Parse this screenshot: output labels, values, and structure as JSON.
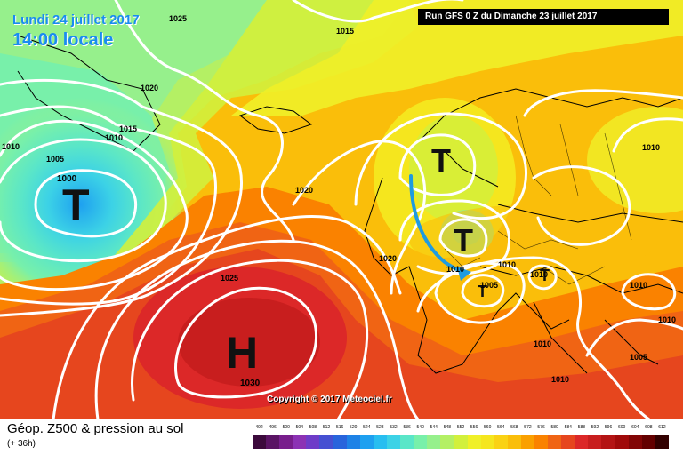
{
  "header": {
    "date_line": "Lundi 24 juillet 2017",
    "time_line": "14:00 locale",
    "run_info": "Run GFS 0 Z du Dimanche 23 juillet 2017"
  },
  "map": {
    "copyright": "Copyright © 2017 Meteociel.fr",
    "pressure_centers": [
      {
        "type": "low",
        "symbol": "T",
        "label": "1000"
      },
      {
        "type": "high",
        "symbol": "H",
        "label": "1030"
      },
      {
        "type": "low",
        "symbol": "T"
      },
      {
        "type": "low",
        "symbol": "T"
      },
      {
        "type": "low",
        "symbol": "T"
      },
      {
        "type": "low",
        "symbol": "T"
      }
    ],
    "isobar_labels": [
      "1025",
      "1015",
      "1020",
      "1015",
      "1010",
      "1010",
      "1005",
      "1000",
      "1020",
      "1025",
      "1030",
      "1020",
      "1010",
      "1010",
      "1005",
      "1010",
      "1010",
      "1010",
      "1010",
      "1005",
      "1010",
      "1010"
    ],
    "arrow_color": "#1e9be0"
  },
  "footer": {
    "title": "Géop. Z500 & pression au sol",
    "subtitle": "(+ 36h)"
  },
  "legend": {
    "values": [
      "492",
      "496",
      "500",
      "504",
      "508",
      "512",
      "516",
      "520",
      "524",
      "528",
      "532",
      "536",
      "540",
      "544",
      "548",
      "552",
      "556",
      "560",
      "564",
      "568",
      "572",
      "576",
      "580",
      "584",
      "588",
      "592",
      "596",
      "600",
      "604",
      "608",
      "612"
    ],
    "colors": [
      "#3c0a3c",
      "#5a1464",
      "#781e8c",
      "#8c32b4",
      "#6e3cc8",
      "#4650d2",
      "#2864dc",
      "#1e82e6",
      "#1ea0f0",
      "#28bef0",
      "#3cd2e6",
      "#5ae6c8",
      "#78f0aa",
      "#96f08c",
      "#b4f064",
      "#d2f03c",
      "#f0f028",
      "#f5e61e",
      "#fad214",
      "#fabe0a",
      "#faa000",
      "#fa8200",
      "#f06414",
      "#e6461e",
      "#dc2828",
      "#c81e1e",
      "#b41414",
      "#a00a0a",
      "#820505",
      "#640000",
      "#320000"
    ]
  }
}
